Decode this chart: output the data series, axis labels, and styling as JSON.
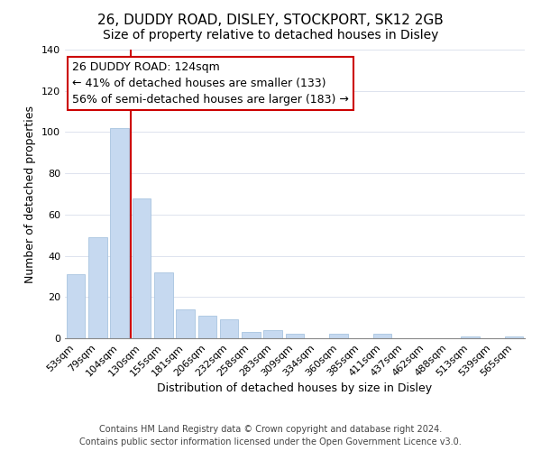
{
  "title": "26, DUDDY ROAD, DISLEY, STOCKPORT, SK12 2GB",
  "subtitle": "Size of property relative to detached houses in Disley",
  "xlabel": "Distribution of detached houses by size in Disley",
  "ylabel": "Number of detached properties",
  "bar_labels": [
    "53sqm",
    "79sqm",
    "104sqm",
    "130sqm",
    "155sqm",
    "181sqm",
    "206sqm",
    "232sqm",
    "258sqm",
    "283sqm",
    "309sqm",
    "334sqm",
    "360sqm",
    "385sqm",
    "411sqm",
    "437sqm",
    "462sqm",
    "488sqm",
    "513sqm",
    "539sqm",
    "565sqm"
  ],
  "bar_values": [
    31,
    49,
    102,
    68,
    32,
    14,
    11,
    9,
    3,
    4,
    2,
    0,
    2,
    0,
    2,
    0,
    0,
    0,
    1,
    0,
    1
  ],
  "bar_color": "#c6d9f0",
  "bar_edge_color": "#a8c4e0",
  "vline_color": "#cc0000",
  "vline_x_index": 3,
  "ylim": [
    0,
    140
  ],
  "yticks": [
    0,
    20,
    40,
    60,
    80,
    100,
    120,
    140
  ],
  "annotation_title": "26 DUDDY ROAD: 124sqm",
  "annotation_line1": "← 41% of detached houses are smaller (133)",
  "annotation_line2": "56% of semi-detached houses are larger (183) →",
  "annotation_box_color": "#ffffff",
  "annotation_box_edge": "#cc0000",
  "footer_line1": "Contains HM Land Registry data © Crown copyright and database right 2024.",
  "footer_line2": "Contains public sector information licensed under the Open Government Licence v3.0.",
  "title_fontsize": 11,
  "xlabel_fontsize": 9,
  "ylabel_fontsize": 9,
  "tick_fontsize": 8,
  "annotation_fontsize": 9,
  "footer_fontsize": 7
}
